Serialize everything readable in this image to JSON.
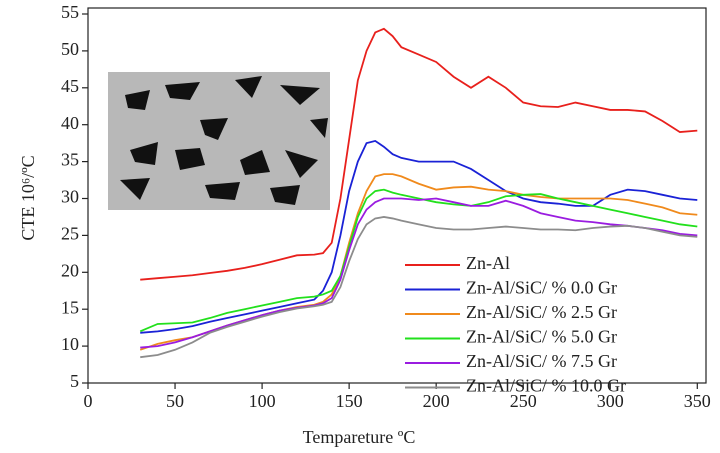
{
  "chart_data": {
    "type": "line",
    "x_label": "Tempareture ºC",
    "y_label": "CTE 10⁶/ºC",
    "x": [
      30,
      40,
      50,
      60,
      70,
      80,
      90,
      100,
      110,
      120,
      130,
      135,
      140,
      145,
      150,
      155,
      160,
      165,
      170,
      175,
      180,
      190,
      200,
      210,
      220,
      230,
      240,
      250,
      260,
      270,
      280,
      290,
      300,
      310,
      320,
      330,
      340,
      350
    ],
    "series": [
      {
        "name": "Zn-Al",
        "color": "#e8201c",
        "values": [
          19,
          19.2,
          19.4,
          19.6,
          19.9,
          20.2,
          20.6,
          21.1,
          21.7,
          22.3,
          22.4,
          22.6,
          24,
          30,
          38,
          46,
          50,
          52.5,
          53,
          52,
          50.5,
          49.5,
          48.5,
          46.5,
          45,
          46.5,
          45,
          43,
          42.5,
          42.4,
          43,
          42.5,
          42,
          42,
          41.8,
          40.5,
          39,
          39.2
        ]
      },
      {
        "name": "Zn-Al/SiC/ % 0.0 Gr",
        "color": "#1a22d6",
        "values": [
          11.8,
          12,
          12.3,
          12.7,
          13.3,
          13.8,
          14.3,
          14.8,
          15.3,
          15.8,
          16.3,
          17.5,
          20,
          25,
          31,
          35,
          37.5,
          37.8,
          37,
          36,
          35.5,
          35,
          35,
          35,
          34,
          32.5,
          31,
          30,
          29.5,
          29.3,
          29,
          29,
          30.5,
          31.2,
          31,
          30.5,
          30,
          29.8
        ]
      },
      {
        "name": "Zn-Al/SiC/ % 2.5 Gr",
        "color": "#f08a1c",
        "values": [
          9.5,
          10.3,
          10.8,
          11.2,
          12,
          12.8,
          13.5,
          14.2,
          14.8,
          15.3,
          15.6,
          16,
          17,
          19.5,
          24,
          28,
          31,
          33,
          33.3,
          33.3,
          33,
          32,
          31.2,
          31.5,
          31.6,
          31.2,
          31,
          30.5,
          30.2,
          30,
          30,
          30,
          30,
          29.8,
          29.3,
          28.8,
          28,
          27.8
        ]
      },
      {
        "name": "Zn-Al/SiC/ % 5.0 Gr",
        "color": "#22e01c",
        "values": [
          12,
          13,
          13.1,
          13.2,
          13.8,
          14.5,
          15,
          15.5,
          16,
          16.5,
          16.7,
          17,
          17.5,
          19.5,
          23.5,
          27.5,
          30,
          31,
          31.2,
          30.8,
          30.5,
          30,
          29.5,
          29.2,
          29,
          29.5,
          30.3,
          30.5,
          30.6,
          30,
          29.5,
          29,
          28.5,
          28,
          27.5,
          27,
          26.5,
          26.2
        ]
      },
      {
        "name": "Zn-Al/SiC/ % 7.5 Gr",
        "color": "#9a1ce0",
        "values": [
          9.8,
          10,
          10.5,
          11.2,
          12,
          12.8,
          13.5,
          14.2,
          14.8,
          15.2,
          15.5,
          15.8,
          16.5,
          19,
          23,
          26.5,
          28.5,
          29.5,
          30,
          30,
          30,
          29.8,
          30,
          29.5,
          29,
          29,
          29.7,
          29,
          28,
          27.5,
          27,
          26.8,
          26.5,
          26.3,
          26,
          25.7,
          25.2,
          25
        ]
      },
      {
        "name": "Zn-Al/SiC/ % 10.0 Gr",
        "color": "#8c8c8c",
        "values": [
          8.5,
          8.8,
          9.5,
          10.5,
          11.8,
          12.6,
          13.3,
          14,
          14.6,
          15.1,
          15.4,
          15.6,
          16,
          18,
          21.5,
          24.5,
          26.5,
          27.3,
          27.5,
          27.3,
          27,
          26.5,
          26,
          25.8,
          25.8,
          26,
          26.2,
          26,
          25.8,
          25.8,
          25.7,
          26,
          26.2,
          26.3,
          26,
          25.5,
          25,
          24.8
        ]
      }
    ],
    "xlim": [
      0,
      355
    ],
    "xticks": [
      0,
      50,
      100,
      150,
      200,
      250,
      300,
      350
    ],
    "ylim": [
      5,
      55
    ],
    "yticks": [
      5,
      10,
      15,
      20,
      25,
      30,
      35,
      40,
      45,
      50,
      55
    ],
    "legend": "lower-right"
  }
}
